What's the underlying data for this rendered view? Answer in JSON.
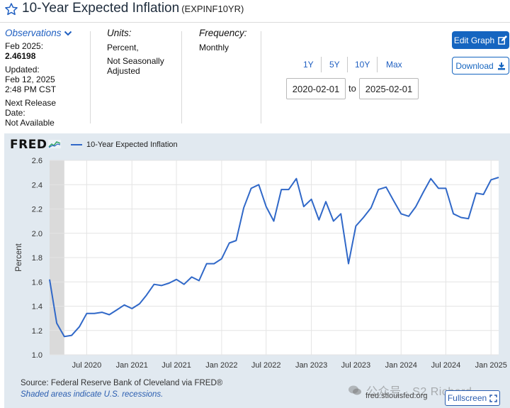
{
  "header": {
    "title": "10-Year Expected Inflation",
    "series_id": "(EXPINF10YR)"
  },
  "observations": {
    "heading": "Observations",
    "period": "Feb 2025:",
    "value": "2.46198",
    "updated_label": "Updated:",
    "updated_date": "Feb 12, 2025",
    "updated_time": "2:48 PM CST",
    "next_release_label_1": "Next Release",
    "next_release_label_2": "Date:",
    "next_release_value": "Not Available"
  },
  "units": {
    "label": "Units:",
    "line1": "Percent,",
    "line2": "Not Seasonally",
    "line3": "Adjusted"
  },
  "frequency": {
    "label": "Frequency:",
    "value": "Monthly"
  },
  "range": {
    "buttons": [
      "1Y",
      "5Y",
      "10Y",
      "Max"
    ],
    "start": "2020-02-01",
    "to": "to",
    "end": "2025-02-01"
  },
  "actions": {
    "edit_graph": "Edit Graph",
    "download": "Download"
  },
  "colors": {
    "series": "#3068c8",
    "accent": "#1565c0",
    "plot_bg": "#ffffff",
    "panel_bg": "#e1e9f0"
  },
  "chart_data": {
    "type": "line",
    "ylabel": "Percent",
    "legend": "10-Year Expected Inflation",
    "legend_position": "top-left",
    "grid": true,
    "ylim": [
      1.0,
      2.6
    ],
    "yticks": [
      "1.0",
      "1.2",
      "1.4",
      "1.6",
      "1.8",
      "2.0",
      "2.2",
      "2.4",
      "2.6"
    ],
    "xticks": [
      "Jul 2020",
      "Jan 2021",
      "Jul 2021",
      "Jan 2022",
      "Jul 2022",
      "Jan 2023",
      "Jul 2023",
      "Jan 2024",
      "Jul 2024",
      "Jan 2025"
    ],
    "recession_shading": [
      "2020-02",
      "2020-04"
    ],
    "series": [
      {
        "name": "10-Year Expected Inflation",
        "x": [
          "2020-02",
          "2020-03",
          "2020-04",
          "2020-05",
          "2020-06",
          "2020-07",
          "2020-08",
          "2020-09",
          "2020-10",
          "2020-11",
          "2020-12",
          "2021-01",
          "2021-02",
          "2021-03",
          "2021-04",
          "2021-05",
          "2021-06",
          "2021-07",
          "2021-08",
          "2021-09",
          "2021-10",
          "2021-11",
          "2021-12",
          "2022-01",
          "2022-02",
          "2022-03",
          "2022-04",
          "2022-05",
          "2022-06",
          "2022-07",
          "2022-08",
          "2022-09",
          "2022-10",
          "2022-11",
          "2022-12",
          "2023-01",
          "2023-02",
          "2023-03",
          "2023-04",
          "2023-05",
          "2023-06",
          "2023-07",
          "2023-08",
          "2023-09",
          "2023-10",
          "2023-11",
          "2023-12",
          "2024-01",
          "2024-02",
          "2024-03",
          "2024-04",
          "2024-05",
          "2024-06",
          "2024-07",
          "2024-08",
          "2024-09",
          "2024-10",
          "2024-11",
          "2024-12",
          "2025-01",
          "2025-02"
        ],
        "values": [
          1.62,
          1.26,
          1.15,
          1.16,
          1.23,
          1.34,
          1.34,
          1.35,
          1.33,
          1.37,
          1.41,
          1.38,
          1.42,
          1.49,
          1.58,
          1.57,
          1.59,
          1.62,
          1.58,
          1.64,
          1.61,
          1.75,
          1.75,
          1.79,
          1.92,
          1.94,
          2.21,
          2.37,
          2.4,
          2.22,
          2.1,
          2.36,
          2.36,
          2.45,
          2.22,
          2.28,
          2.11,
          2.26,
          2.1,
          2.16,
          1.75,
          2.06,
          2.13,
          2.21,
          2.36,
          2.38,
          2.27,
          2.16,
          2.14,
          2.22,
          2.34,
          2.45,
          2.37,
          2.37,
          2.16,
          2.13,
          2.12,
          2.33,
          2.32,
          2.44,
          2.46
        ]
      }
    ]
  },
  "footer": {
    "source": "Source: Federal Reserve Bank of Cleveland via FRED®",
    "shaded_note": "Shaded areas indicate U.S. recessions.",
    "url": "fred.stlouisfed.org",
    "fullscreen": "Fullscreen",
    "watermark": "公众号 · S2 Richard"
  },
  "logo": {
    "text": "FRED"
  }
}
